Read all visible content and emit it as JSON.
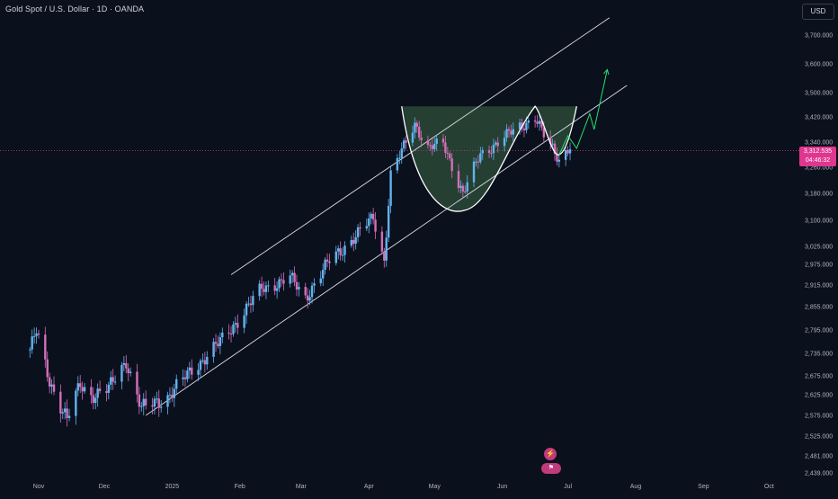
{
  "header": {
    "title": "Gold Spot / U.S. Dollar · 1D · OANDA",
    "currency_button": "USD"
  },
  "current_price": {
    "value": "3,312.535",
    "countdown": "04:46:32"
  },
  "colors": {
    "bull": "#63b3ed",
    "bear": "#d36fb8",
    "background": "#0b101d",
    "pattern_fill": "#2f4f3a",
    "projection": "#22e06b",
    "price_line": "#e0368f"
  },
  "event_icons": [
    "lightning-icon",
    "us-flag-icon"
  ],
  "chart_data": {
    "type": "candlestick",
    "title": "Gold Spot / U.S. Dollar · 1D · OANDA",
    "y_axis": {
      "side": "right",
      "ticks": [
        2439,
        2481,
        2525,
        2575,
        2625,
        2675,
        2735,
        2795,
        2855,
        2915,
        2975,
        3025,
        3100,
        3180,
        3260,
        3340,
        3420,
        3500,
        3600,
        3700
      ],
      "tick_labels": [
        "2,439.000",
        "2,481.000",
        "2,525.000",
        "2,575.000",
        "2,625.000",
        "2,675.000",
        "2,735.000",
        "2,795.000",
        "2,855.000",
        "2,915.000",
        "2,975.000",
        "3,025.000",
        "3,100.000",
        "3,180.000",
        "3,260.000",
        "3,340.000",
        "3,420.000",
        "3,500.000",
        "3,600.000",
        "3,700.000"
      ]
    },
    "x_axis": {
      "labels": [
        "Nov",
        "Dec",
        "2025",
        "Feb",
        "Mar",
        "Apr",
        "May",
        "Jun",
        "Jul",
        "Aug",
        "Sep",
        "Oct"
      ]
    },
    "close_path": [
      [
        "2024-10-28",
        2745
      ],
      [
        "2024-10-31",
        2790
      ],
      [
        "2024-11-06",
        2660
      ],
      [
        "2024-11-14",
        2565
      ],
      [
        "2024-11-20",
        2650
      ],
      [
        "2024-11-25",
        2625
      ],
      [
        "2024-12-03",
        2640
      ],
      [
        "2024-12-11",
        2715
      ],
      [
        "2024-12-18",
        2590
      ],
      [
        "2024-12-30",
        2620
      ],
      [
        "2025-01-10",
        2690
      ],
      [
        "2025-01-24",
        2770
      ],
      [
        "2025-02-04",
        2850
      ],
      [
        "2025-02-11",
        2905
      ],
      [
        "2025-02-24",
        2935
      ],
      [
        "2025-03-03",
        2880
      ],
      [
        "2025-03-14",
        2985
      ],
      [
        "2025-03-27",
        3060
      ],
      [
        "2025-04-03",
        3110
      ],
      [
        "2025-04-08",
        2985
      ],
      [
        "2025-04-11",
        3235
      ],
      [
        "2025-04-22",
        3400
      ],
      [
        "2025-04-28",
        3320
      ],
      [
        "2025-05-05",
        3335
      ],
      [
        "2025-05-14",
        3180
      ],
      [
        "2025-05-22",
        3300
      ],
      [
        "2025-06-05",
        3370
      ],
      [
        "2025-06-16",
        3420
      ],
      [
        "2025-06-20",
        3360
      ],
      [
        "2025-06-27",
        3285
      ],
      [
        "2025-07-02",
        3330
      ]
    ],
    "channel_lines": [
      {
        "name": "upper",
        "from": [
          "2025-01-28",
          2945
        ],
        "to": [
          "2025-07-20",
          3760
        ]
      },
      {
        "name": "lower",
        "from": [
          "2024-12-20",
          2575
        ],
        "to": [
          "2025-07-28",
          3525
        ]
      }
    ],
    "pattern": {
      "type": "cup and handle",
      "rim_level": 3455,
      "cup_left": [
        "2025-04-16",
        3455
      ],
      "cup_bottom": [
        "2025-05-15",
        3130
      ],
      "cup_right": [
        "2025-06-16",
        3455
      ],
      "handle_bottom": [
        "2025-06-27",
        3300
      ]
    },
    "projection": [
      [
        "2025-06-27",
        3300
      ],
      [
        "2025-07-01",
        3360
      ],
      [
        "2025-07-05",
        3320
      ],
      [
        "2025-07-11",
        3430
      ],
      [
        "2025-07-13",
        3380
      ],
      [
        "2025-07-19",
        3580
      ]
    ],
    "current_price_line": 3312.535,
    "grid": false
  }
}
